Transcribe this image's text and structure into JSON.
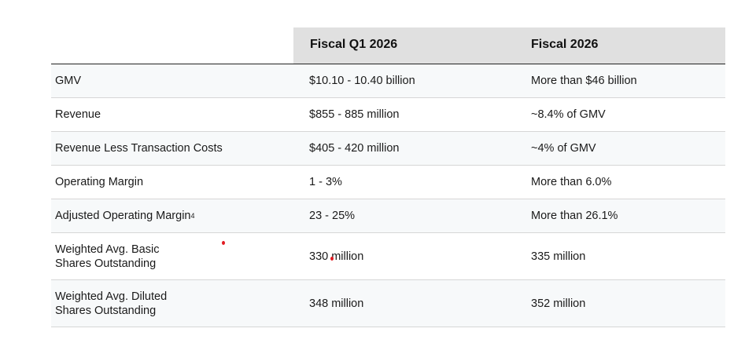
{
  "header": {
    "col1": "Fiscal Q1 2026",
    "col2": "Fiscal 2026"
  },
  "rows": [
    {
      "label": "GMV",
      "q1": "$10.10 - 10.40 billion",
      "fy": "More than $46 billion"
    },
    {
      "label": "Revenue",
      "q1": "$855 - 885 million",
      "fy": "~8.4% of GMV"
    },
    {
      "label": "Revenue Less Transaction Costs",
      "q1": "$405 - 420 million",
      "fy": "~4% of GMV"
    },
    {
      "label": "Operating Margin",
      "q1": "1 - 3%",
      "fy": "More than 6.0%"
    },
    {
      "label": "Adjusted Operating Margin",
      "footnote": "4",
      "q1": "23 - 25%",
      "fy": "More than 26.1%"
    },
    {
      "label_line1": "Weighted Avg. Basic",
      "label_line2": "Shares Outstanding",
      "q1": "330 million",
      "fy": "335 million"
    },
    {
      "label_line1": "Weighted Avg. Diluted",
      "label_line2": "Shares Outstanding",
      "q1": "348 million",
      "fy": "352 million"
    }
  ],
  "colors": {
    "header_bg": "#e0e0e0",
    "shaded_row": "#f7f9fa",
    "marker": "#e11b22"
  }
}
